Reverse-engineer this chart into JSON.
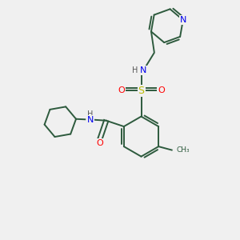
{
  "bg_color": "#f0f0f0",
  "bond_color": "#2d5a3d",
  "atom_colors": {
    "N": "#0000ee",
    "O": "#ff0000",
    "S": "#bbbb00",
    "H": "#555555",
    "C": "#2d5a3d"
  },
  "figsize": [
    3.0,
    3.0
  ],
  "dpi": 100
}
